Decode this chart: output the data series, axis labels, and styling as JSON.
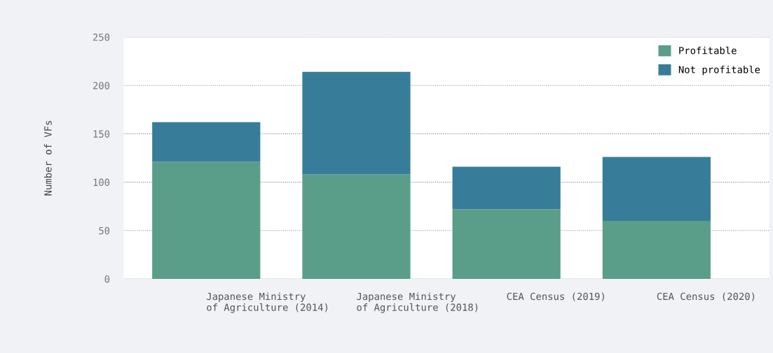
{
  "chart_data": {
    "type": "bar",
    "stacked": true,
    "ylabel": "Number of VFs",
    "categories": [
      "Japanese Ministry\nof Agriculture (2014)",
      "Japanese Ministry\nof Agriculture (2018)",
      "CEA Census (2019)",
      "CEA Census (2020)"
    ],
    "series": [
      {
        "name": "Profitable",
        "color": "#5a9e8a",
        "values": [
          121,
          108,
          72,
          60
        ]
      },
      {
        "name": "Not profitable",
        "color": "#377d99",
        "values": [
          41,
          106,
          44,
          66
        ]
      }
    ],
    "ylim": [
      0,
      250
    ],
    "yticks": [
      0,
      50,
      100,
      150,
      200,
      250
    ],
    "grid": "y",
    "legend": "top right"
  }
}
